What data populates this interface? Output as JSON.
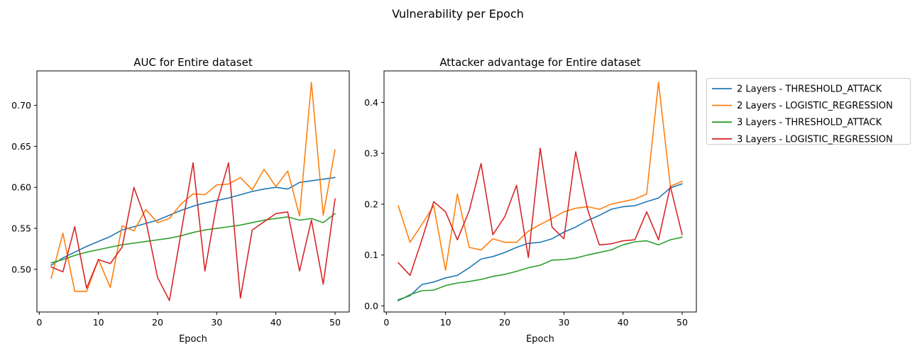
{
  "figure": {
    "title": "Vulnerability per Epoch"
  },
  "colors": {
    "blue": "#1f77b4",
    "orange": "#ff7f0e",
    "green": "#2ca02c",
    "red": "#d62728"
  },
  "legend": {
    "entries": [
      {
        "label": "2 Layers - THRESHOLD_ATTACK",
        "color": "#1f77b4"
      },
      {
        "label": "2 Layers - LOGISTIC_REGRESSION",
        "color": "#ff7f0e"
      },
      {
        "label": "3 Layers - THRESHOLD_ATTACK",
        "color": "#2ca02c"
      },
      {
        "label": "3 Layers - LOGISTIC_REGRESSION",
        "color": "#d62728"
      }
    ]
  },
  "chart_data": [
    {
      "type": "line",
      "title": "AUC for Entire dataset",
      "xlabel": "Epoch",
      "ylabel": "",
      "x": [
        2,
        4,
        6,
        8,
        10,
        12,
        14,
        16,
        18,
        20,
        22,
        24,
        26,
        28,
        30,
        32,
        34,
        36,
        38,
        40,
        42,
        44,
        46,
        48,
        50
      ],
      "xlim": [
        -0.4,
        52.4
      ],
      "ylim": [
        0.448,
        0.742
      ],
      "xticks": [
        0,
        10,
        20,
        30,
        40,
        50
      ],
      "xtick_labels": [
        "0",
        "10",
        "20",
        "30",
        "40",
        "50"
      ],
      "yticks": [
        0.5,
        0.55,
        0.6,
        0.65,
        0.7
      ],
      "ytick_labels": [
        "0.50",
        "0.55",
        "0.60",
        "0.65",
        "0.70"
      ],
      "grid": false,
      "series": [
        {
          "name": "2 Layers - THRESHOLD_ATTACK",
          "color": "#1f77b4",
          "values": [
            0.505,
            0.514,
            0.521,
            0.528,
            0.534,
            0.54,
            0.548,
            0.552,
            0.556,
            0.56,
            0.566,
            0.572,
            0.577,
            0.581,
            0.584,
            0.587,
            0.591,
            0.595,
            0.598,
            0.6,
            0.598,
            0.606,
            0.608,
            0.61,
            0.612
          ]
        },
        {
          "name": "2 Layers - LOGISTIC_REGRESSION",
          "color": "#ff7f0e",
          "values": [
            0.489,
            0.544,
            0.473,
            0.473,
            0.512,
            0.478,
            0.553,
            0.547,
            0.573,
            0.557,
            0.562,
            0.58,
            0.592,
            0.591,
            0.603,
            0.604,
            0.612,
            0.597,
            0.622,
            0.601,
            0.62,
            0.565,
            0.728,
            0.566,
            0.646
          ]
        },
        {
          "name": "3 Layers - THRESHOLD_ATTACK",
          "color": "#2ca02c",
          "values": [
            0.508,
            0.512,
            0.517,
            0.521,
            0.524,
            0.527,
            0.53,
            0.532,
            0.534,
            0.536,
            0.538,
            0.541,
            0.545,
            0.548,
            0.55,
            0.552,
            0.554,
            0.557,
            0.56,
            0.562,
            0.564,
            0.56,
            0.562,
            0.557,
            0.568
          ]
        },
        {
          "name": "3 Layers - LOGISTIC_REGRESSION",
          "color": "#d62728",
          "values": [
            0.503,
            0.497,
            0.552,
            0.477,
            0.512,
            0.507,
            0.527,
            0.6,
            0.56,
            0.49,
            0.462,
            0.546,
            0.63,
            0.498,
            0.58,
            0.63,
            0.465,
            0.548,
            0.558,
            0.568,
            0.57,
            0.498,
            0.56,
            0.482,
            0.586
          ]
        }
      ]
    },
    {
      "type": "line",
      "title": "Attacker advantage for Entire dataset",
      "xlabel": "Epoch",
      "ylabel": "",
      "x": [
        2,
        4,
        6,
        8,
        10,
        12,
        14,
        16,
        18,
        20,
        22,
        24,
        26,
        28,
        30,
        32,
        34,
        36,
        38,
        40,
        42,
        44,
        46,
        48,
        50
      ],
      "xlim": [
        -0.4,
        52.4
      ],
      "ylim": [
        -0.012,
        0.462
      ],
      "xticks": [
        0,
        10,
        20,
        30,
        40,
        50
      ],
      "xtick_labels": [
        "0",
        "10",
        "20",
        "30",
        "40",
        "50"
      ],
      "yticks": [
        0.0,
        0.1,
        0.2,
        0.3,
        0.4
      ],
      "ytick_labels": [
        "0.0",
        "0.1",
        "0.2",
        "0.3",
        "0.4"
      ],
      "grid": false,
      "series": [
        {
          "name": "2 Layers - THRESHOLD_ATTACK",
          "color": "#1f77b4",
          "values": [
            0.012,
            0.02,
            0.042,
            0.047,
            0.055,
            0.06,
            0.075,
            0.092,
            0.097,
            0.105,
            0.115,
            0.123,
            0.125,
            0.132,
            0.145,
            0.155,
            0.168,
            0.178,
            0.19,
            0.195,
            0.197,
            0.205,
            0.212,
            0.232,
            0.24
          ]
        },
        {
          "name": "2 Layers - LOGISTIC_REGRESSION",
          "color": "#ff7f0e",
          "values": [
            0.197,
            0.125,
            0.16,
            0.197,
            0.07,
            0.22,
            0.115,
            0.11,
            0.132,
            0.125,
            0.125,
            0.147,
            0.16,
            0.172,
            0.185,
            0.192,
            0.195,
            0.19,
            0.2,
            0.205,
            0.21,
            0.22,
            0.44,
            0.235,
            0.245
          ]
        },
        {
          "name": "3 Layers - THRESHOLD_ATTACK",
          "color": "#2ca02c",
          "values": [
            0.01,
            0.022,
            0.03,
            0.031,
            0.04,
            0.045,
            0.048,
            0.052,
            0.058,
            0.062,
            0.068,
            0.075,
            0.08,
            0.09,
            0.091,
            0.094,
            0.1,
            0.105,
            0.11,
            0.12,
            0.126,
            0.128,
            0.12,
            0.13,
            0.135
          ]
        },
        {
          "name": "3 Layers - LOGISTIC_REGRESSION",
          "color": "#d62728",
          "values": [
            0.085,
            0.06,
            0.13,
            0.205,
            0.185,
            0.13,
            0.187,
            0.28,
            0.14,
            0.175,
            0.237,
            0.095,
            0.31,
            0.155,
            0.132,
            0.303,
            0.19,
            0.12,
            0.122,
            0.128,
            0.13,
            0.185,
            0.13,
            0.235,
            0.14
          ]
        }
      ]
    }
  ]
}
